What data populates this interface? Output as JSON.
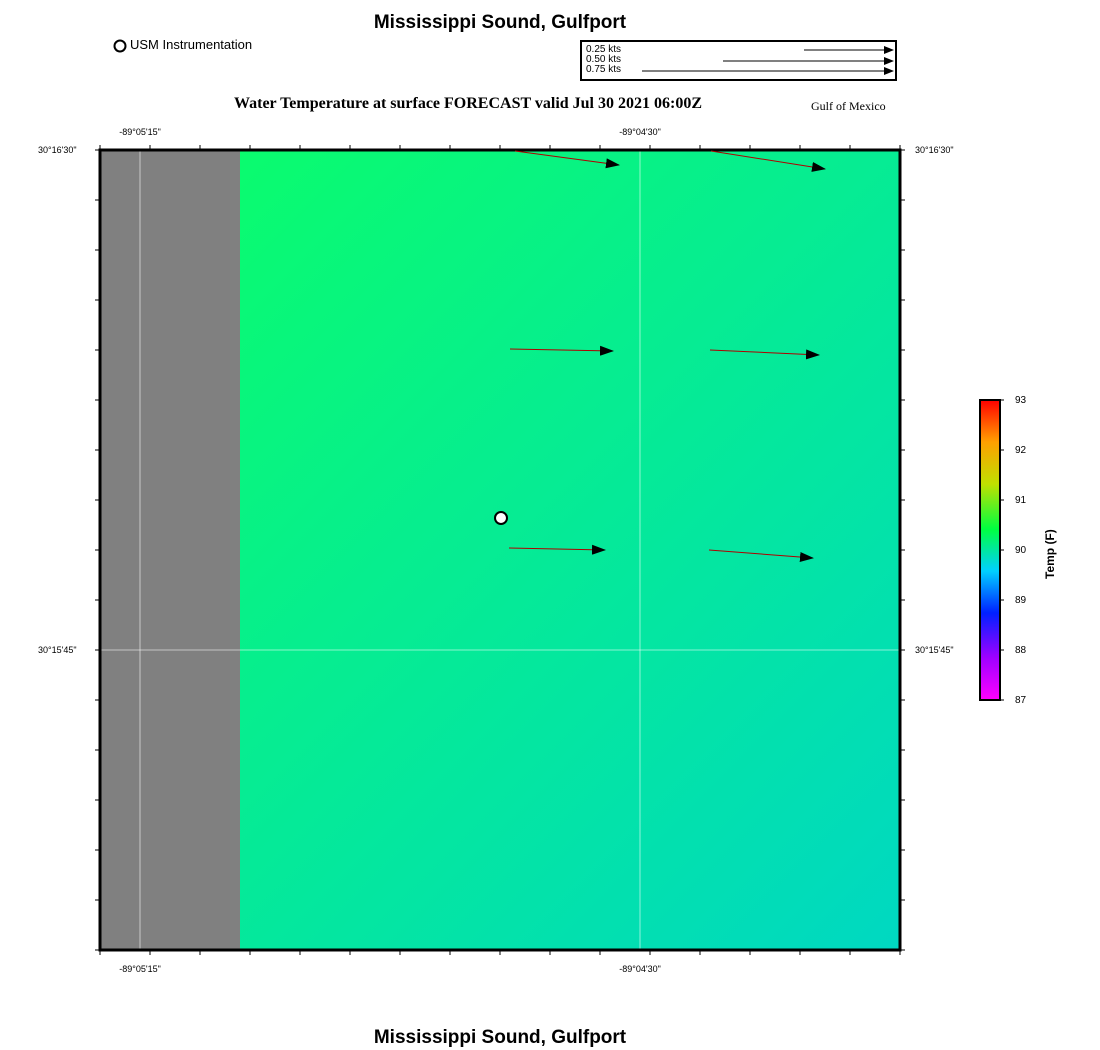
{
  "header": {
    "title": "Mississippi Sound, Gulfport",
    "subtitle": "Water Temperature at surface FORECAST valid Jul 30 2021 06:00Z",
    "region": "Gulf of Mexico"
  },
  "footer": {
    "title": "Mississippi Sound, Gulfport"
  },
  "legend": {
    "station_label": "USM Instrumentation"
  },
  "vector_reference": {
    "items": [
      {
        "label": "0.25 kts",
        "speed": 0.25
      },
      {
        "label": "0.50 kts",
        "speed": 0.5
      },
      {
        "label": "0.75 kts",
        "speed": 0.75
      }
    ]
  },
  "map": {
    "longitude_ticks": [
      "-89°05'15\"",
      "-89°04'30\""
    ],
    "latitude_ticks": [
      "30°16'30\"",
      "30°15'45\""
    ],
    "land_color": "#808080",
    "water_color_top": "#0bff66",
    "water_color_bottom": "#00d8c2",
    "current_color": "#b00000"
  },
  "colorbar": {
    "title": "Temp (F)",
    "min": 87,
    "max": 93,
    "ticks": [
      "93",
      "92",
      "91",
      "90",
      "89",
      "88",
      "87"
    ],
    "colors": [
      "#ff0000",
      "#ffa000",
      "#c0e000",
      "#00ff40",
      "#00d0ff",
      "#0020ff",
      "#a000ff",
      "#ff00ff"
    ]
  }
}
